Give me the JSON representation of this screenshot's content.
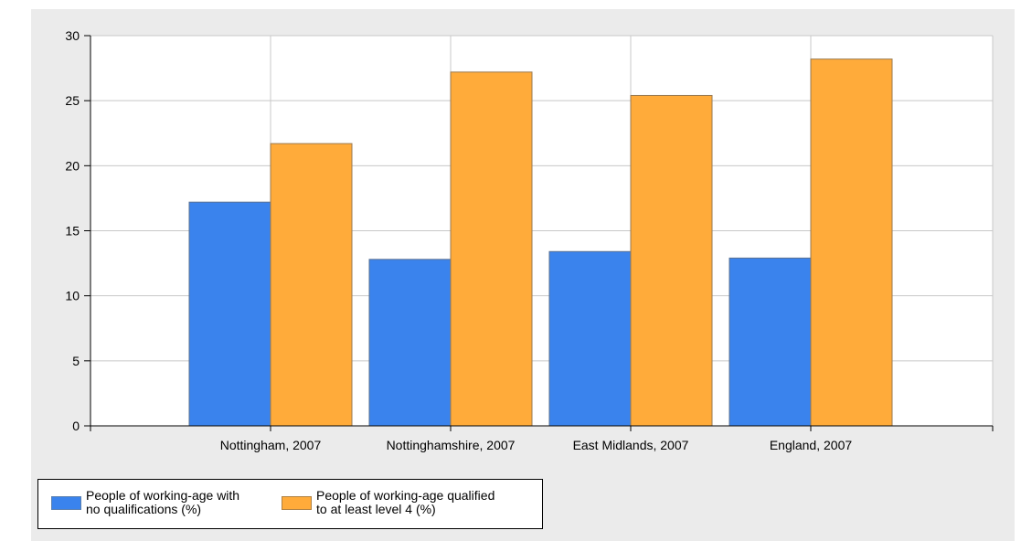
{
  "colors": {
    "series1": "#3a83ed",
    "series2": "#ffab3a",
    "grid": "#c8c8c8",
    "axis": "#000000"
  },
  "legend": {
    "placement": "bottom-left",
    "items": [
      {
        "label": "People of working-age with\nno qualifications (%)"
      },
      {
        "label": "People of working-age qualified\nto at least level 4 (%)"
      }
    ]
  },
  "chart_data": {
    "type": "bar",
    "title": "",
    "xlabel": "",
    "ylabel": "",
    "ylim": [
      0,
      30
    ],
    "yticks": [
      0,
      5,
      10,
      15,
      20,
      25,
      30
    ],
    "grid": true,
    "categories": [
      "Nottingham, 2007",
      "Nottinghamshire, 2007",
      "East Midlands, 2007",
      "England, 2007"
    ],
    "series": [
      {
        "name": "People of working-age with no qualifications (%)",
        "values": [
          17.2,
          12.8,
          13.4,
          12.9
        ]
      },
      {
        "name": "People of working-age qualified to at least level 4 (%)",
        "values": [
          21.7,
          27.2,
          25.4,
          28.2
        ]
      }
    ]
  }
}
